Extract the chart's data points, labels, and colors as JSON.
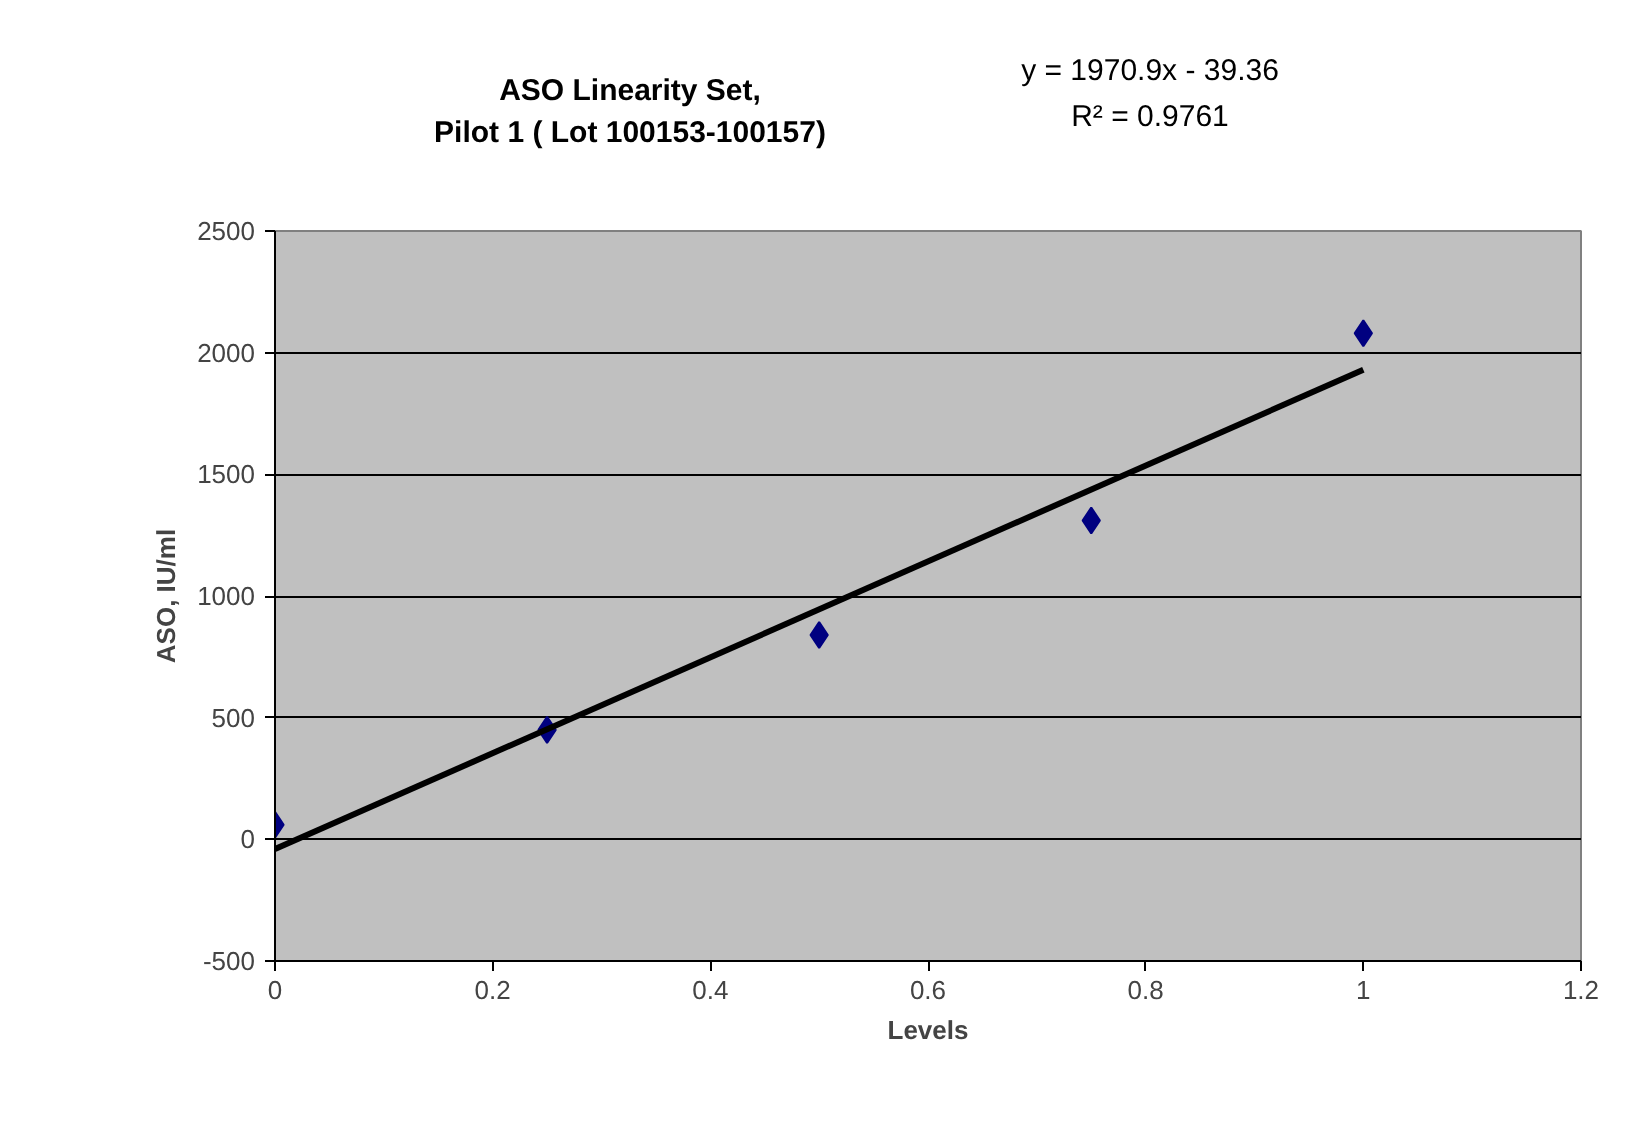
{
  "chart_data": {
    "type": "scatter",
    "title": "ASO Linearity Set,\nPilot 1 ( Lot 100153-100157)",
    "xlabel": "Levels",
    "ylabel": "ASO, IU/ml",
    "annotations": [
      "y = 1970.9x - 39.36",
      "R² = 0.9761"
    ],
    "series": [
      {
        "color": "#000080",
        "x": [
          0,
          0.25,
          0.5,
          0.75,
          1
        ],
        "values": [
          60,
          450,
          840,
          1310,
          2080
        ],
        "marker": "diamond"
      },
      {
        "type": "line",
        "color": "#000000",
        "x": [
          0,
          1
        ],
        "values": [
          -40,
          1930
        ],
        "line_style": "solid"
      }
    ],
    "xlim": [
      0,
      1.2
    ],
    "xticks": [
      0,
      0.2,
      0.4,
      0.6,
      0.8,
      1,
      1.2
    ],
    "ylim": [
      -500,
      2500
    ],
    "yticks": [
      -500,
      0,
      500,
      1000,
      1500,
      2000,
      2500
    ],
    "grid": "y"
  }
}
